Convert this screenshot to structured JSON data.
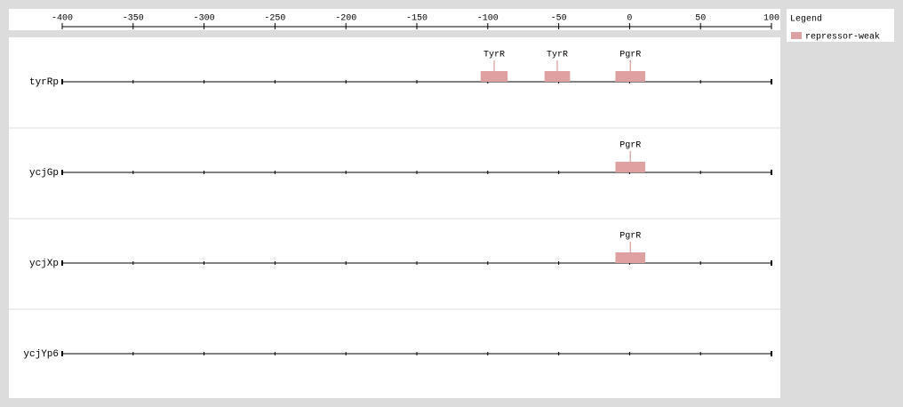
{
  "chart_data": {
    "type": "track",
    "xlim": [
      -400,
      100
    ],
    "xticks": [
      -400,
      -350,
      -300,
      -250,
      -200,
      -150,
      -100,
      -50,
      0,
      50,
      100
    ],
    "legend_title": "Legend",
    "legend_position": "top-right",
    "series": [
      {
        "name": "repressor-weak",
        "color": "#dea0a0"
      }
    ],
    "rows": [
      {
        "name": "tyrRp",
        "sites": [
          {
            "label": "TyrR",
            "start": -105,
            "end": -86
          },
          {
            "label": "TyrR",
            "start": -60,
            "end": -42
          },
          {
            "label": "PgrR",
            "start": -10,
            "end": 11
          }
        ]
      },
      {
        "name": "ycjGp",
        "sites": [
          {
            "label": "PgrR",
            "start": -10,
            "end": 11
          }
        ]
      },
      {
        "name": "ycjXp",
        "sites": [
          {
            "label": "PgrR",
            "start": -10,
            "end": 11
          }
        ]
      },
      {
        "name": "ycjYp6",
        "sites": []
      }
    ]
  }
}
